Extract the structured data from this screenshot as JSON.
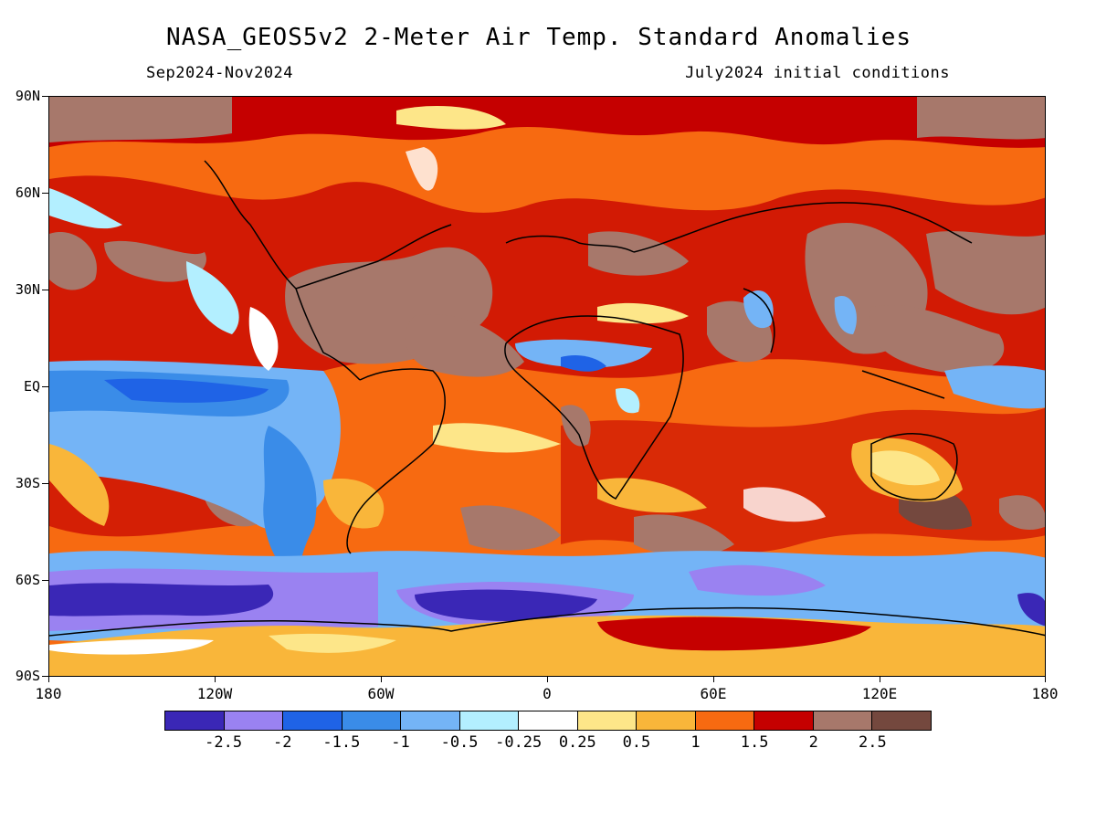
{
  "title": "NASA_GEOS5v2 2-Meter Air Temp. Standard Anomalies",
  "subtitle_left": "Sep2024-Nov2024",
  "subtitle_right": "July2024 initial conditions",
  "lat_labels": [
    "90N",
    "60N",
    "30N",
    "EQ",
    "30S",
    "60S",
    "90S"
  ],
  "lon_labels": [
    "180",
    "120W",
    "60W",
    "0",
    "60E",
    "120E",
    "180"
  ],
  "colorbar": {
    "colors": [
      "#3a27b6",
      "#9a82f1",
      "#1f63e6",
      "#3a8ce8",
      "#74b4f6",
      "#b3efff",
      "#ffffff",
      "#fde689",
      "#f9b63a",
      "#f76a11",
      "#c50000",
      "#a7786b",
      "#74483e"
    ],
    "labels": [
      "-2.5",
      "-2",
      "-1.5",
      "-1",
      "-0.5",
      "-0.25",
      "0.25",
      "0.5",
      "1",
      "1.5",
      "2",
      "2.5"
    ]
  }
}
